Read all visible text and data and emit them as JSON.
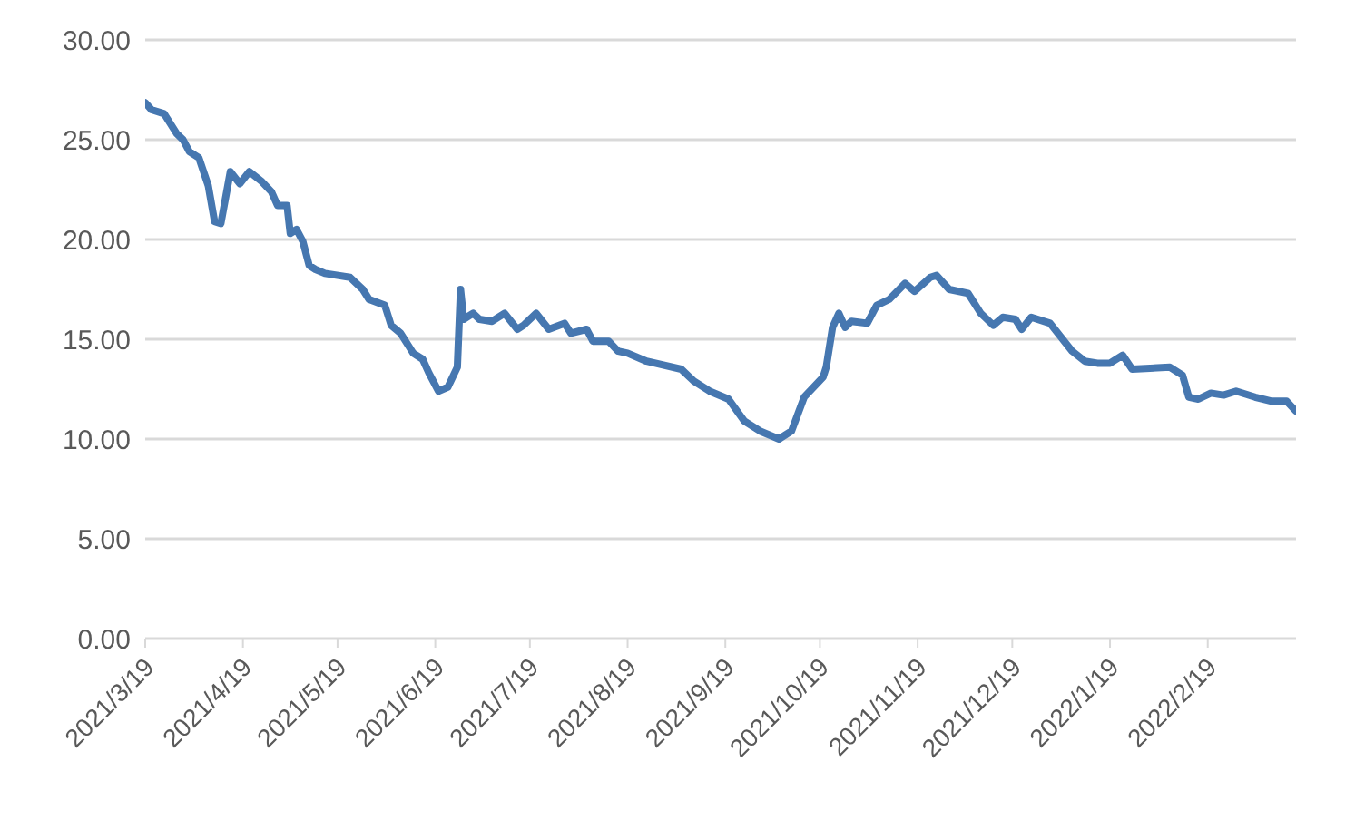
{
  "chart_data": {
    "type": "line",
    "x": [
      "2021-03-19",
      "2021-03-21",
      "2021-03-25",
      "2021-03-27",
      "2021-03-29",
      "2021-03-31",
      "2021-04-02",
      "2021-04-05",
      "2021-04-08",
      "2021-04-10",
      "2021-04-12",
      "2021-04-15",
      "2021-04-18",
      "2021-04-21",
      "2021-04-25",
      "2021-04-28",
      "2021-04-30",
      "2021-05-03",
      "2021-05-04",
      "2021-05-06",
      "2021-05-08",
      "2021-05-10",
      "2021-05-12",
      "2021-05-15",
      "2021-05-23",
      "2021-05-27",
      "2021-05-29",
      "2021-06-03",
      "2021-06-05",
      "2021-06-08",
      "2021-06-12",
      "2021-06-15",
      "2021-06-17",
      "2021-06-20",
      "2021-06-23",
      "2021-06-26",
      "2021-06-27",
      "2021-06-28",
      "2021-07-01",
      "2021-07-03",
      "2021-07-07",
      "2021-07-11",
      "2021-07-15",
      "2021-07-17",
      "2021-07-21",
      "2021-07-25",
      "2021-07-30",
      "2021-08-01",
      "2021-08-06",
      "2021-08-08",
      "2021-08-13",
      "2021-08-16",
      "2021-08-19",
      "2021-08-25",
      "2021-09-05",
      "2021-09-09",
      "2021-09-14",
      "2021-09-20",
      "2021-09-25",
      "2021-09-30",
      "2021-10-06",
      "2021-10-10",
      "2021-10-14",
      "2021-10-17",
      "2021-10-20",
      "2021-10-21",
      "2021-10-23",
      "2021-10-25",
      "2021-10-27",
      "2021-10-29",
      "2021-11-03",
      "2021-11-06",
      "2021-11-10",
      "2021-11-15",
      "2021-11-18",
      "2021-11-23",
      "2021-11-25",
      "2021-11-29",
      "2021-12-05",
      "2021-12-09",
      "2021-12-13",
      "2021-12-16",
      "2021-12-20",
      "2021-12-22",
      "2021-12-25",
      "2021-12-31",
      "2022-01-07",
      "2022-01-11",
      "2022-01-15",
      "2022-01-19",
      "2022-01-23",
      "2022-01-26",
      "2022-02-07",
      "2022-02-11",
      "2022-02-13",
      "2022-02-16",
      "2022-02-20",
      "2022-02-24",
      "2022-02-28",
      "2022-03-06",
      "2022-03-11",
      "2022-03-16",
      "2022-03-19"
    ],
    "series": [
      {
        "color": "#4677b0",
        "values": [
          26.85,
          26.5,
          26.3,
          25.8,
          25.3,
          25.0,
          24.4,
          24.1,
          22.7,
          20.9,
          20.8,
          23.4,
          22.8,
          23.4,
          22.9,
          22.4,
          21.7,
          21.7,
          20.3,
          20.5,
          19.9,
          18.7,
          18.5,
          18.3,
          18.1,
          17.5,
          17.0,
          16.7,
          15.7,
          15.3,
          14.3,
          14.0,
          13.3,
          12.4,
          12.6,
          13.6,
          17.5,
          16.0,
          16.3,
          16.0,
          15.9,
          16.3,
          15.5,
          15.7,
          16.3,
          15.5,
          15.8,
          15.3,
          15.5,
          14.9,
          14.9,
          14.4,
          14.3,
          13.9,
          13.5,
          12.9,
          12.4,
          12.0,
          10.9,
          10.4,
          10.0,
          10.4,
          12.1,
          12.6,
          13.1,
          13.6,
          15.6,
          16.3,
          15.6,
          15.9,
          15.8,
          16.7,
          17.0,
          17.8,
          17.4,
          18.1,
          18.2,
          17.5,
          17.3,
          16.3,
          15.7,
          16.1,
          16.0,
          15.5,
          16.1,
          15.8,
          14.4,
          13.9,
          13.8,
          13.8,
          14.2,
          13.5,
          13.6,
          13.2,
          12.1,
          12.0,
          12.3,
          12.2,
          12.4,
          12.1,
          11.9,
          11.9,
          11.4
        ]
      }
    ],
    "xlim": [
      "2021-03-19",
      "2022-03-19"
    ],
    "xticks": [
      {
        "value": "2021-03-19",
        "label": "2021/3/19"
      },
      {
        "value": "2021-04-19",
        "label": "2021/4/19"
      },
      {
        "value": "2021-05-19",
        "label": "2021/5/19"
      },
      {
        "value": "2021-06-19",
        "label": "2021/6/19"
      },
      {
        "value": "2021-07-19",
        "label": "2021/7/19"
      },
      {
        "value": "2021-08-19",
        "label": "2021/8/19"
      },
      {
        "value": "2021-09-19",
        "label": "2021/9/19"
      },
      {
        "value": "2021-10-19",
        "label": "2021/10/19"
      },
      {
        "value": "2021-11-19",
        "label": "2021/11/19"
      },
      {
        "value": "2021-12-19",
        "label": "2021/12/19"
      },
      {
        "value": "2022-01-19",
        "label": "2022/1/19"
      },
      {
        "value": "2022-02-19",
        "label": "2022/2/19"
      }
    ],
    "ylim": [
      0,
      30
    ],
    "yticks": [
      {
        "value": 0,
        "label": "0.00"
      },
      {
        "value": 5,
        "label": "5.00"
      },
      {
        "value": 10,
        "label": "10.00"
      },
      {
        "value": 15,
        "label": "15.00"
      },
      {
        "value": 20,
        "label": "20.00"
      },
      {
        "value": 25,
        "label": "25.00"
      },
      {
        "value": 30,
        "label": "30.00"
      }
    ],
    "grid": "y",
    "marker": "none",
    "line_style": "solid",
    "legend": false
  }
}
